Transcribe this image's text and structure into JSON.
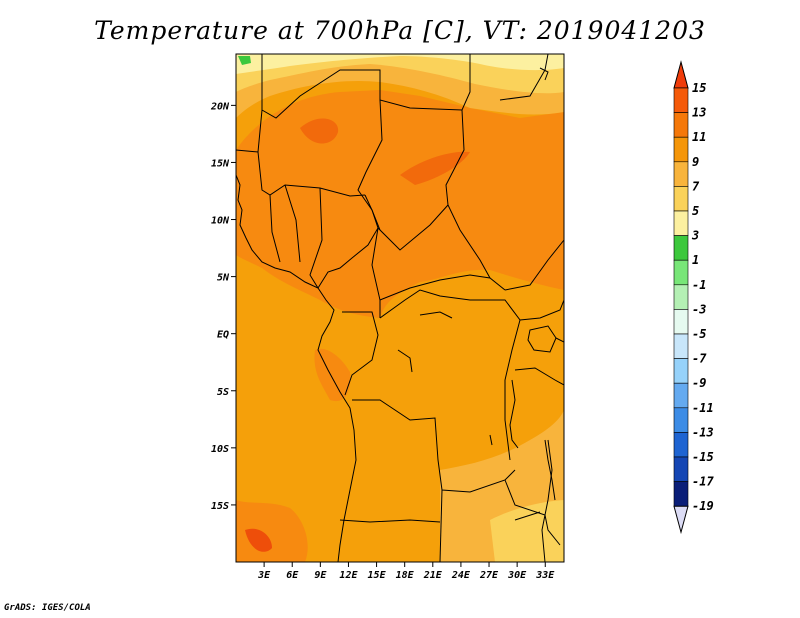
{
  "title": "Temperature at 700hPa [C], VT: 2019041203",
  "credit": "GrADS: IGES/COLA",
  "map": {
    "projection": "lat-lon",
    "lon_range": [
      0,
      35
    ],
    "lat_range": [
      -20,
      24.5
    ],
    "lon_ticks": [
      {
        "v": 3,
        "label": "3E"
      },
      {
        "v": 6,
        "label": "6E"
      },
      {
        "v": 9,
        "label": "9E"
      },
      {
        "v": 12,
        "label": "12E"
      },
      {
        "v": 15,
        "label": "15E"
      },
      {
        "v": 18,
        "label": "18E"
      },
      {
        "v": 21,
        "label": "21E"
      },
      {
        "v": 24,
        "label": "24E"
      },
      {
        "v": 27,
        "label": "27E"
      },
      {
        "v": 30,
        "label": "30E"
      },
      {
        "v": 33,
        "label": "33E"
      }
    ],
    "lat_ticks": [
      {
        "v": 20,
        "label": "20N"
      },
      {
        "v": 15,
        "label": "15N"
      },
      {
        "v": 10,
        "label": "10N"
      },
      {
        "v": 5,
        "label": "5N"
      },
      {
        "v": 0,
        "label": "EQ"
      },
      {
        "v": -5,
        "label": "5S"
      },
      {
        "v": -10,
        "label": "10S"
      },
      {
        "v": -15,
        "label": "15S"
      }
    ]
  },
  "colorbar": {
    "levels": [
      "15",
      "13",
      "11",
      "9",
      "7",
      "5",
      "3",
      "1",
      "-1",
      "-3",
      "-5",
      "-7",
      "-9",
      "-11",
      "-13",
      "-15",
      "-17",
      "-19"
    ],
    "colors": [
      "#f03c0a",
      "#f55a0a",
      "#f5780a",
      "#f5960a",
      "#f8b43c",
      "#fad25a",
      "#fcf0a0",
      "#3cc83c",
      "#78e678",
      "#b4f0b4",
      "#e6faf0",
      "#c8e6fa",
      "#96d2fa",
      "#64aaf0",
      "#3c8ce6",
      "#1e64d2",
      "#1446b4",
      "#0a1e78",
      "#dcdcf5"
    ]
  },
  "field_colors": {
    "t9": "#f5a00a",
    "t11": "#f78a10",
    "t13": "#f26a0c",
    "t15": "#ee4e0a",
    "t7": "#f8b43c",
    "t5": "#fad25a",
    "t3": "#fcf0a0",
    "t1": "#3cc83c"
  }
}
